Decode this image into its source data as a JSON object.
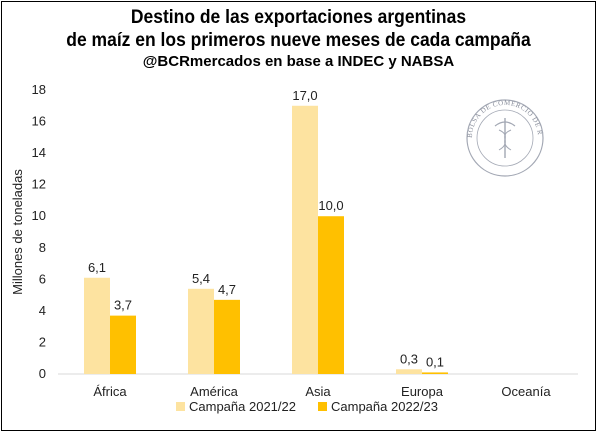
{
  "title_line1": "Destino de las exportaciones argentinas",
  "title_line2": "de maíz en los primeros nueve meses de cada campaña",
  "subtitle": "@BCRmercados en base a INDEC y NABSA",
  "seal_text": "BOLSA DE COMERCIO DE ROSARIO",
  "colors": {
    "series1": "#fde3a0",
    "series2": "#ffc000",
    "grid": "#d9d9d9"
  },
  "chart_data": {
    "type": "bar",
    "title": "Destino de las exportaciones argentinas de maíz en los primeros nueve meses de cada campaña",
    "subtitle": "@BCRmercados en base a INDEC y NABSA",
    "xlabel": "",
    "ylabel": "Millones de toneladas",
    "ylim": [
      0,
      18
    ],
    "yticks": [
      0,
      2,
      4,
      6,
      8,
      10,
      12,
      14,
      16,
      18
    ],
    "grid": false,
    "legend": "bottom",
    "categories": [
      "África",
      "América",
      "Asia",
      "Europa",
      "Oceanía"
    ],
    "series": [
      {
        "name": "Campaña 2021/22",
        "values": [
          6.1,
          5.4,
          17.0,
          0.3,
          null
        ],
        "labels": [
          "6,1",
          "5,4",
          "17,0",
          "0,3",
          ""
        ]
      },
      {
        "name": "Campaña 2022/23",
        "values": [
          3.7,
          4.7,
          10.0,
          0.1,
          null
        ],
        "labels": [
          "3,7",
          "4,7",
          "10,0",
          "0,1",
          ""
        ]
      }
    ]
  }
}
